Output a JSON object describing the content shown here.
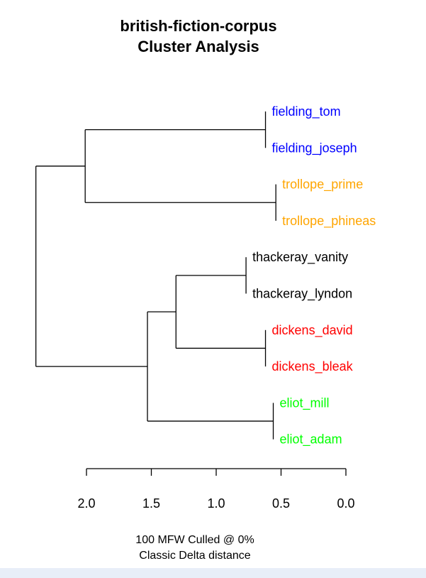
{
  "title_line1": "british-fiction-corpus",
  "title_line2": "Cluster Analysis",
  "footer_line1": "100 MFW  Culled @ 0%",
  "footer_line2": "Classic Delta distance",
  "colors": {
    "fielding": "#0000ff",
    "trollope": "#ffa500",
    "thackeray": "#000000",
    "dickens": "#ff0000",
    "eliot": "#00ff00",
    "lines": "#000000",
    "bottom_strip": "#e8eef8"
  },
  "chart_data": {
    "type": "dendrogram",
    "orientation": "horizontal",
    "xlim": [
      2.0,
      0.0
    ],
    "ticks": [
      2.0,
      1.5,
      1.0,
      0.5,
      0.0
    ],
    "tick_labels": [
      "2.0",
      "1.5",
      "1.0",
      "0.5",
      "0.0"
    ],
    "leaves": [
      {
        "label": "fielding_tom",
        "group": "fielding"
      },
      {
        "label": "fielding_joseph",
        "group": "fielding"
      },
      {
        "label": "trollope_prime",
        "group": "trollope"
      },
      {
        "label": "trollope_phineas",
        "group": "trollope"
      },
      {
        "label": "thackeray_vanity",
        "group": "thackeray"
      },
      {
        "label": "thackeray_lyndon",
        "group": "thackeray"
      },
      {
        "label": "dickens_david",
        "group": "dickens"
      },
      {
        "label": "dickens_bleak",
        "group": "dickens"
      },
      {
        "label": "eliot_mill",
        "group": "eliot"
      },
      {
        "label": "eliot_adam",
        "group": "eliot"
      }
    ],
    "merges": [
      {
        "id": "A",
        "left": "fielding_tom",
        "right": "fielding_joseph",
        "height": 0.62
      },
      {
        "id": "B",
        "left": "trollope_prime",
        "right": "trollope_phineas",
        "height": 0.54
      },
      {
        "id": "C",
        "left": "thackeray_vanity",
        "right": "thackeray_lyndon",
        "height": 0.77
      },
      {
        "id": "D",
        "left": "dickens_david",
        "right": "dickens_bleak",
        "height": 0.62
      },
      {
        "id": "E",
        "left": "eliot_mill",
        "right": "eliot_adam",
        "height": 0.56
      },
      {
        "id": "F",
        "left": "A",
        "right": "B",
        "height": 2.01
      },
      {
        "id": "G",
        "left": "C",
        "right": "D",
        "height": 1.31
      },
      {
        "id": "H",
        "left": "G",
        "right": "E",
        "height": 1.53
      },
      {
        "id": "I",
        "left": "F",
        "right": "H",
        "height": 2.39
      }
    ]
  }
}
